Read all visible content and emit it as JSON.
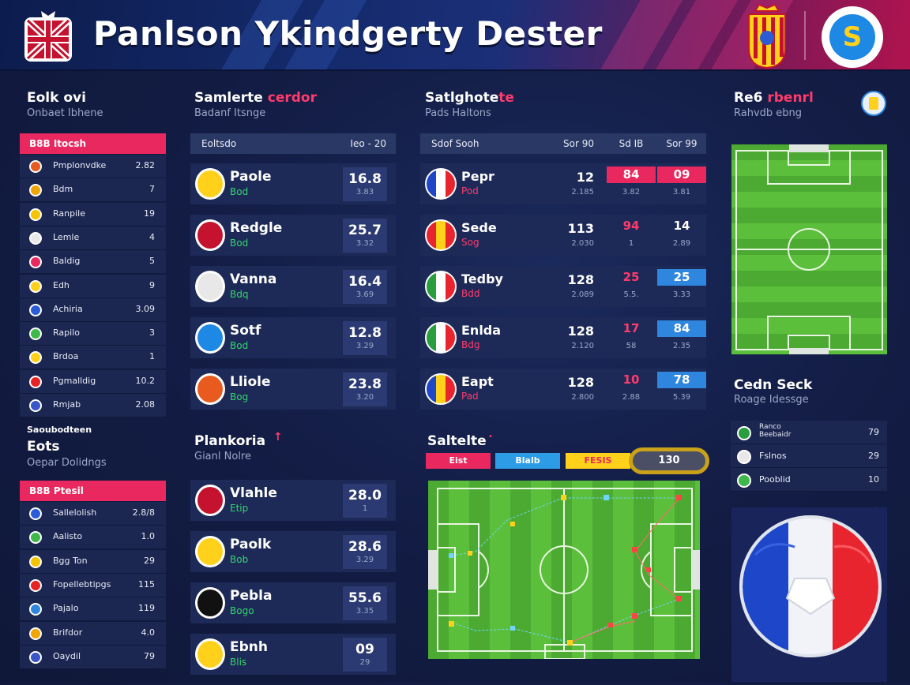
{
  "header": {
    "title": "Panlson Ykindgerty Dester"
  },
  "left_panel": {
    "title": "Eolk ovi",
    "subtitle": "Onbaet Ibhene",
    "band_label": "B8B Itocsh",
    "rows": [
      {
        "name": "Pmplonvdke",
        "value": "2.82",
        "color": "#e85a1d"
      },
      {
        "name": "Bdm",
        "value": "7",
        "color": "#f2a400"
      },
      {
        "name": "Ranpile",
        "value": "19",
        "color": "#f4c400"
      },
      {
        "name": "Lemle",
        "value": "4",
        "color": "#e8e8e8"
      },
      {
        "name": "Baldig",
        "value": "5",
        "color": "#e8285f"
      },
      {
        "name": "Edh",
        "value": "9",
        "color": "#ffd11a"
      },
      {
        "name": "Achiria",
        "value": "3.09",
        "color": "#2c5bd6"
      },
      {
        "name": "Rapilo",
        "value": "3",
        "color": "#3fb84a"
      },
      {
        "name": "Brdoa",
        "value": "1",
        "color": "#ffd11a"
      },
      {
        "name": "Pgmalldig",
        "value": "10.2",
        "color": "#e82323"
      },
      {
        "name": "Rmjab",
        "value": "2.08",
        "color": "#3a55c8"
      }
    ]
  },
  "left_panel2": {
    "kicker": "Saoubodteen",
    "title": "Eots",
    "subtitle": "Oepar Dolidngs",
    "band_label": "B8B Ptesil",
    "rows": [
      {
        "name": "Sallelolish",
        "value": "2.8/8",
        "color": "#2c5bd6"
      },
      {
        "name": "Aalisto",
        "value": "1.0",
        "color": "#3fb84a"
      },
      {
        "name": "Bgg Ton",
        "value": "29",
        "color": "#f4c400"
      },
      {
        "name": "Fopellebtipgs",
        "value": "115",
        "color": "#e82323"
      },
      {
        "name": "Pajalo",
        "value": "119",
        "color": "#2e86de"
      },
      {
        "name": "Brifdor",
        "value": "4.0",
        "color": "#f2a400"
      },
      {
        "name": "Oaydil",
        "value": "79",
        "color": "#3a55c8"
      }
    ]
  },
  "standings": {
    "title": "Samlerte",
    "title_accent": "cerdor",
    "subtitle": "Badanf Itsnge",
    "header_left": "Eoltsdo",
    "header_right": "Ieo - 20",
    "cards": [
      {
        "name": "Paole",
        "sub": "Bod",
        "value": "16.8",
        "small": "3.83",
        "crest": "#ffd11a"
      },
      {
        "name": "Redgle",
        "sub": "Bod",
        "value": "25.7",
        "small": "3.32",
        "crest": "#c4122f"
      },
      {
        "name": "Vanna",
        "sub": "Bdq",
        "value": "16.4",
        "small": "3.69",
        "crest": "#e8e8e8"
      },
      {
        "name": "Sotf",
        "sub": "Bod",
        "value": "12.8",
        "small": "3.29",
        "crest": "#1e88e5"
      },
      {
        "name": "Lliole",
        "sub": "Bog",
        "value": "23.8",
        "small": "3.20",
        "crest": "#e85a1d"
      }
    ]
  },
  "players": {
    "title": "Plankoria",
    "subtitle": "Gianl Nolre",
    "cards": [
      {
        "name": "Vlahle",
        "sub": "Etip",
        "value": "28.0",
        "small": "1",
        "crest": "#c4122f"
      },
      {
        "name": "Paolk",
        "sub": "Bob",
        "value": "28.6",
        "small": "3.29",
        "crest": "#ffd11a"
      },
      {
        "name": "Pebla",
        "sub": "Bogo",
        "value": "55.6",
        "small": "3.35",
        "crest": "#111111"
      },
      {
        "name": "Ebnh",
        "sub": "Blis",
        "value": "09",
        "small": "29",
        "crest": "#ffd11a"
      }
    ]
  },
  "matches": {
    "title": "Satlghote",
    "title_accent": "te",
    "subtitle": "Pads Haltons",
    "header_left": "Sdof Sooh",
    "header_c1": "Sor 90",
    "header_c2": "Sd IB",
    "header_c3": "Sor 99",
    "rows": [
      {
        "name": "Pepr",
        "sub": "Pod",
        "c1": "12",
        "c1s": "2.185",
        "c2": "84",
        "c2s": "3.82",
        "c3": "09",
        "c3s": "3.81",
        "hl": "#e8285f",
        "hl3": "#e8285f",
        "flag": "fr"
      },
      {
        "name": "Sede",
        "sub": "Sog",
        "c1": "113",
        "c1s": "2.030",
        "c2": "94",
        "c2s": "1",
        "c3": "14",
        "c3s": "2.89",
        "hl": "",
        "hl3": "",
        "flag": "es"
      },
      {
        "name": "Tedby",
        "sub": "Bdd",
        "c1": "128",
        "c1s": "2.089",
        "c2": "25",
        "c2s": "5.5.",
        "c3": "25",
        "c3s": "3.33",
        "hl": "",
        "hl3": "#2e86de",
        "flag": "it"
      },
      {
        "name": "Enlda",
        "sub": "Bdg",
        "c1": "128",
        "c1s": "2.120",
        "c2": "17",
        "c2s": "58",
        "c3": "84",
        "c3s": "2.35",
        "hl": "",
        "hl3": "#2e86de",
        "flag": "mx"
      },
      {
        "name": "Eapt",
        "sub": "Pad",
        "c1": "128",
        "c1s": "2.800",
        "c2": "10",
        "c2s": "2.88",
        "c3": "78",
        "c3s": "5.39",
        "hl": "",
        "hl3": "#2e86de",
        "flag": "ro"
      }
    ]
  },
  "satellite": {
    "title": "Saltelte",
    "tabs": [
      {
        "label": "Eist",
        "color": "#e8285f",
        "text": "#ffffff"
      },
      {
        "label": "Blalb",
        "color": "#2e9be6",
        "text": "#ffffff"
      },
      {
        "label": "FESIS",
        "color": "#ffd11a",
        "text": "#e8285f"
      }
    ],
    "score": "130"
  },
  "right_panel": {
    "title": "Re6",
    "title_accent": "rbenrl",
    "subtitle": "Rahvdb ebng",
    "card_title": "Cedn Seck",
    "card_subtitle": "Roage Idessge",
    "rows": [
      {
        "name": "Ranco\nBeebaidr",
        "value": "79",
        "color": "#2a9d3f"
      },
      {
        "name": "Fslnos",
        "value": "29",
        "color": "#e8e8e8"
      },
      {
        "name": "Pooblid",
        "value": "10",
        "color": "#3fb84a"
      }
    ],
    "plus": "+"
  }
}
